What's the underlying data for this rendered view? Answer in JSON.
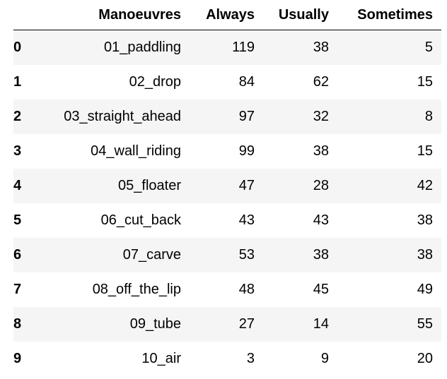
{
  "table": {
    "index_header": "",
    "columns": [
      "Manoeuvres",
      "Always",
      "Usually",
      "Sometimes"
    ],
    "rows": [
      {
        "index": "0",
        "cells": [
          "01_paddling",
          "119",
          "38",
          "5"
        ]
      },
      {
        "index": "1",
        "cells": [
          "02_drop",
          "84",
          "62",
          "15"
        ]
      },
      {
        "index": "2",
        "cells": [
          "03_straight_ahead",
          "97",
          "32",
          "8"
        ]
      },
      {
        "index": "3",
        "cells": [
          "04_wall_riding",
          "99",
          "38",
          "15"
        ]
      },
      {
        "index": "4",
        "cells": [
          "05_floater",
          "47",
          "28",
          "42"
        ]
      },
      {
        "index": "5",
        "cells": [
          "06_cut_back",
          "43",
          "43",
          "38"
        ]
      },
      {
        "index": "6",
        "cells": [
          "07_carve",
          "53",
          "38",
          "38"
        ]
      },
      {
        "index": "7",
        "cells": [
          "08_off_the_lip",
          "48",
          "45",
          "49"
        ]
      },
      {
        "index": "8",
        "cells": [
          "09_tube",
          "27",
          "14",
          "55"
        ]
      },
      {
        "index": "9",
        "cells": [
          "10_air",
          "3",
          "9",
          "20"
        ]
      }
    ]
  },
  "colors": {
    "stripe": "#f5f5f5",
    "text": "#000000",
    "header_rule": "#000000"
  }
}
